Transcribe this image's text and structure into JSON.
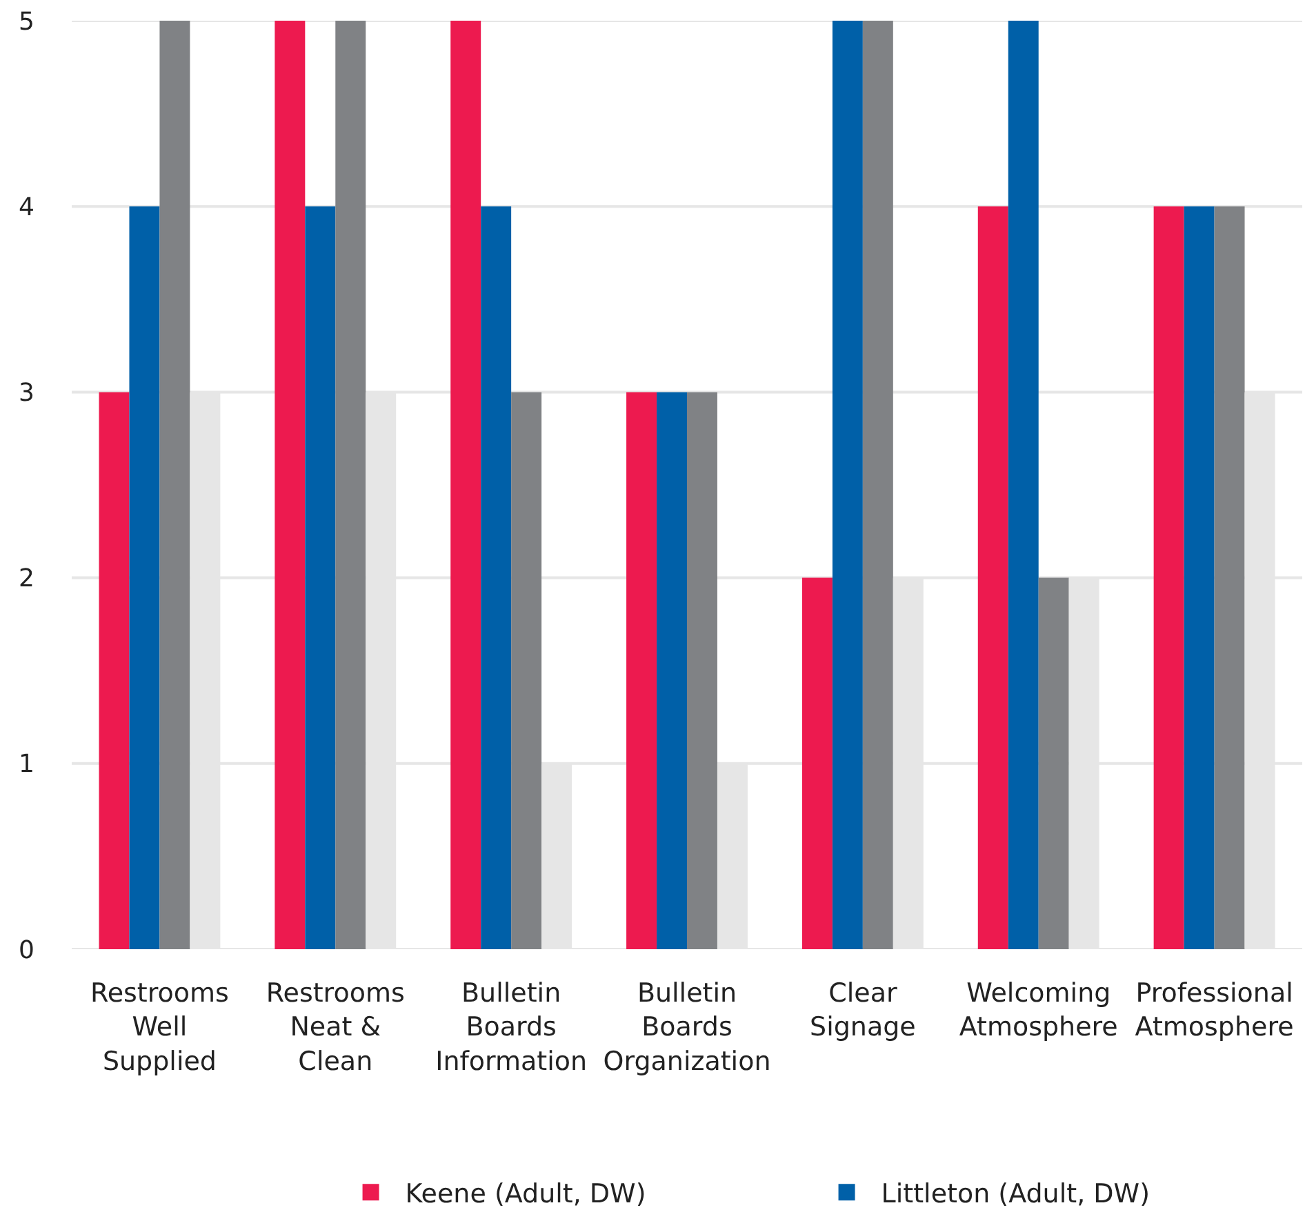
{
  "chart_data": {
    "type": "bar",
    "categories": [
      "Restrooms Well Supplied",
      "Restrooms Neat & Clean",
      "Bulletin Boards Information",
      "Bulletin Boards Organization",
      "Clear Signage",
      "Welcoming Atmosphere",
      "Professional Atmosphere"
    ],
    "series": [
      {
        "name": "Keene (Adult, DW)",
        "color": "#ed1a4f",
        "values": [
          3,
          5,
          5,
          3,
          2,
          4,
          4
        ]
      },
      {
        "name": "Littleton (Adult, DW)",
        "color": "#0060a8",
        "values": [
          4,
          4,
          4,
          3,
          5,
          5,
          4
        ]
      },
      {
        "color": "#808285",
        "values": [
          5,
          5,
          3,
          3,
          5,
          2,
          4
        ]
      },
      {
        "color": "#e6e6e6",
        "values": [
          3,
          3,
          1,
          1,
          2,
          2,
          3
        ]
      }
    ],
    "ylim": [
      0,
      5
    ],
    "yticks": [
      0,
      1,
      2,
      3,
      4,
      5
    ],
    "grid": "y",
    "legend": "bottom"
  }
}
